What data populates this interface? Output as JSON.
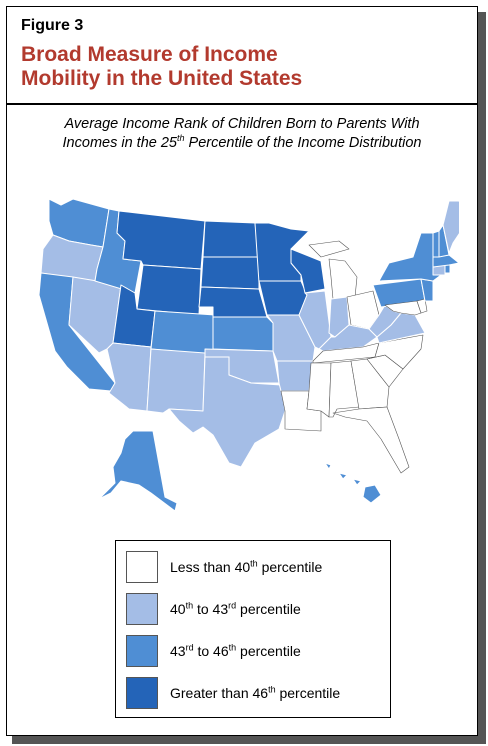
{
  "figure": {
    "label": "Figure 3",
    "title_line1": "Broad Measure of Income",
    "title_line2": "Mobility in the United States",
    "subtitle_line1": "Average Income Rank of Children Born to Parents With",
    "subtitle_line2_a": "Incomes in the 25",
    "subtitle_line2_sup": "th",
    "subtitle_line2_b": " Percentile of the Income Distribution"
  },
  "legend": [
    {
      "id": "lt40",
      "color": "#ffffff",
      "a": "Less than 40",
      "a_sup": "th",
      "b": " percentile",
      "b_sup": "",
      "c": ""
    },
    {
      "id": "40to43",
      "color": "#a4bde6",
      "a": "40",
      "a_sup": "th",
      "b": " to 43",
      "b_sup": "rd",
      "c": " percentile"
    },
    {
      "id": "43to46",
      "color": "#4f8ed4",
      "a": "43",
      "a_sup": "rd",
      "b": " to 46",
      "b_sup": "th",
      "c": " percentile"
    },
    {
      "id": "gt46",
      "color": "#2464b8",
      "a": "Greater than 46",
      "a_sup": "th",
      "b": " percentile",
      "b_sup": "",
      "c": ""
    }
  ],
  "state_categories": {
    "WA": "43to46",
    "OR": "40to43",
    "CA": "43to46",
    "NV": "40to43",
    "ID": "43to46",
    "MT": "gt46",
    "WY": "gt46",
    "UT": "gt46",
    "CO": "43to46",
    "AZ": "40to43",
    "NM": "40to43",
    "ND": "gt46",
    "SD": "gt46",
    "NE": "gt46",
    "KS": "43to46",
    "OK": "40to43",
    "TX": "40to43",
    "MN": "gt46",
    "IA": "gt46",
    "MO": "40to43",
    "AR": "40to43",
    "LA": "lt40",
    "WI": "gt46",
    "IL": "40to43",
    "MI": "lt40",
    "IN": "40to43",
    "OH": "lt40",
    "KY": "40to43",
    "TN": "lt40",
    "MS": "lt40",
    "AL": "lt40",
    "GA": "lt40",
    "FL": "lt40",
    "SC": "lt40",
    "NC": "lt40",
    "VA": "40to43",
    "WV": "40to43",
    "PA": "43to46",
    "NY": "43to46",
    "NJ": "43to46",
    "MD": "lt40",
    "DE": "lt40",
    "CT": "40to43",
    "RI": "43to46",
    "MA": "43to46",
    "VT": "43to46",
    "NH": "43to46",
    "ME": "40to43",
    "AK": "43to46",
    "HI": "43to46"
  }
}
